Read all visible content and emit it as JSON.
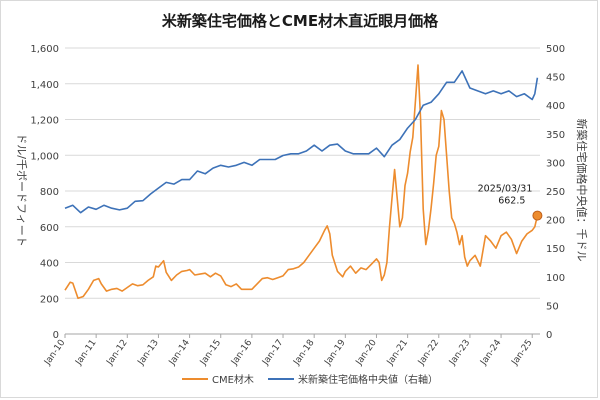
{
  "chart_data": {
    "type": "line",
    "title": "米新築住宅価格とCME材木直近眼月価格",
    "ylabel": "ドル/千ボードフィート",
    "y2label": "新築住宅価格中央値：千ドル",
    "ylim": [
      0,
      1600
    ],
    "y2lim": [
      0,
      500
    ],
    "yticks": [
      "0",
      "200",
      "400",
      "600",
      "800",
      "1,000",
      "1,200",
      "1,400",
      "1,600"
    ],
    "y2ticks": [
      "0",
      "50",
      "100",
      "150",
      "200",
      "250",
      "300",
      "350",
      "400",
      "450",
      "500"
    ],
    "xlim": [
      "2010-01",
      "2025-04"
    ],
    "xticks": [
      "Jan-10",
      "Jan-11",
      "Jan-12",
      "Jan-13",
      "Jan-14",
      "Jan-15",
      "Jan-16",
      "Jan-17",
      "Jan-18",
      "Jan-19",
      "Jan-20",
      "Jan-21",
      "Jan-22",
      "Jan-23",
      "Jan-24",
      "Jan-25"
    ],
    "grid": true,
    "legend_position": "bottom",
    "annotation": {
      "date": "2025/03/31",
      "value": "662.5"
    },
    "colors": {
      "lumber": "#ED8C2E",
      "price": "#3D72B8",
      "grid": "#d9d9d9",
      "axis": "#595959"
    },
    "series": [
      {
        "name": "CME材木",
        "axis": "left",
        "points": [
          [
            "2010-01",
            245
          ],
          [
            "2010-03",
            290
          ],
          [
            "2010-04",
            285
          ],
          [
            "2010-06",
            200
          ],
          [
            "2010-08",
            210
          ],
          [
            "2010-10",
            250
          ],
          [
            "2010-12",
            300
          ],
          [
            "2011-02",
            310
          ],
          [
            "2011-03",
            280
          ],
          [
            "2011-05",
            240
          ],
          [
            "2011-07",
            250
          ],
          [
            "2011-09",
            255
          ],
          [
            "2011-11",
            240
          ],
          [
            "2012-01",
            260
          ],
          [
            "2012-03",
            280
          ],
          [
            "2012-05",
            270
          ],
          [
            "2012-07",
            275
          ],
          [
            "2012-09",
            300
          ],
          [
            "2012-11",
            320
          ],
          [
            "2012-12",
            380
          ],
          [
            "2013-01",
            375
          ],
          [
            "2013-03",
            410
          ],
          [
            "2013-04",
            345
          ],
          [
            "2013-06",
            300
          ],
          [
            "2013-08",
            330
          ],
          [
            "2013-10",
            350
          ],
          [
            "2013-12",
            355
          ],
          [
            "2014-01",
            360
          ],
          [
            "2014-03",
            330
          ],
          [
            "2014-05",
            335
          ],
          [
            "2014-07",
            340
          ],
          [
            "2014-09",
            320
          ],
          [
            "2014-11",
            340
          ],
          [
            "2015-01",
            325
          ],
          [
            "2015-03",
            275
          ],
          [
            "2015-05",
            265
          ],
          [
            "2015-07",
            280
          ],
          [
            "2015-09",
            250
          ],
          [
            "2015-11",
            250
          ],
          [
            "2016-01",
            250
          ],
          [
            "2016-03",
            280
          ],
          [
            "2016-05",
            310
          ],
          [
            "2016-07",
            315
          ],
          [
            "2016-09",
            305
          ],
          [
            "2016-11",
            315
          ],
          [
            "2017-01",
            325
          ],
          [
            "2017-03",
            360
          ],
          [
            "2017-05",
            365
          ],
          [
            "2017-07",
            375
          ],
          [
            "2017-09",
            400
          ],
          [
            "2017-11",
            440
          ],
          [
            "2018-01",
            480
          ],
          [
            "2018-03",
            520
          ],
          [
            "2018-05",
            580
          ],
          [
            "2018-06",
            605
          ],
          [
            "2018-07",
            560
          ],
          [
            "2018-08",
            440
          ],
          [
            "2018-10",
            350
          ],
          [
            "2018-12",
            320
          ],
          [
            "2019-01",
            350
          ],
          [
            "2019-03",
            380
          ],
          [
            "2019-05",
            340
          ],
          [
            "2019-07",
            370
          ],
          [
            "2019-09",
            360
          ],
          [
            "2019-11",
            390
          ],
          [
            "2020-01",
            420
          ],
          [
            "2020-02",
            400
          ],
          [
            "2020-03",
            300
          ],
          [
            "2020-04",
            330
          ],
          [
            "2020-05",
            400
          ],
          [
            "2020-06",
            600
          ],
          [
            "2020-07",
            760
          ],
          [
            "2020-08",
            920
          ],
          [
            "2020-09",
            760
          ],
          [
            "2020-10",
            600
          ],
          [
            "2020-11",
            650
          ],
          [
            "2020-12",
            830
          ],
          [
            "2021-01",
            900
          ],
          [
            "2021-02",
            1020
          ],
          [
            "2021-03",
            1100
          ],
          [
            "2021-04",
            1300
          ],
          [
            "2021-05",
            1505
          ],
          [
            "2021-06",
            1200
          ],
          [
            "2021-07",
            700
          ],
          [
            "2021-08",
            500
          ],
          [
            "2021-09",
            580
          ],
          [
            "2021-10",
            700
          ],
          [
            "2021-11",
            840
          ],
          [
            "2021-12",
            1000
          ],
          [
            "2022-01",
            1050
          ],
          [
            "2022-02",
            1250
          ],
          [
            "2022-03",
            1200
          ],
          [
            "2022-04",
            1000
          ],
          [
            "2022-05",
            800
          ],
          [
            "2022-06",
            650
          ],
          [
            "2022-07",
            620
          ],
          [
            "2022-08",
            570
          ],
          [
            "2022-09",
            500
          ],
          [
            "2022-10",
            550
          ],
          [
            "2022-11",
            430
          ],
          [
            "2022-12",
            380
          ],
          [
            "2023-01",
            410
          ],
          [
            "2023-03",
            440
          ],
          [
            "2023-05",
            380
          ],
          [
            "2023-07",
            550
          ],
          [
            "2023-09",
            520
          ],
          [
            "2023-11",
            480
          ],
          [
            "2024-01",
            550
          ],
          [
            "2024-03",
            570
          ],
          [
            "2024-05",
            530
          ],
          [
            "2024-07",
            450
          ],
          [
            "2024-09",
            520
          ],
          [
            "2024-11",
            560
          ],
          [
            "2025-01",
            580
          ],
          [
            "2025-02",
            600
          ],
          [
            "2025-03",
            662.5
          ]
        ]
      },
      {
        "name": "米新築住宅価格中央値（右軸）",
        "axis": "right",
        "points": [
          [
            "2010-01",
            220
          ],
          [
            "2010-04",
            225
          ],
          [
            "2010-07",
            212
          ],
          [
            "2010-10",
            222
          ],
          [
            "2011-01",
            218
          ],
          [
            "2011-04",
            225
          ],
          [
            "2011-07",
            220
          ],
          [
            "2011-10",
            217
          ],
          [
            "2012-01",
            220
          ],
          [
            "2012-04",
            232
          ],
          [
            "2012-07",
            233
          ],
          [
            "2012-10",
            245
          ],
          [
            "2013-01",
            255
          ],
          [
            "2013-04",
            265
          ],
          [
            "2013-07",
            262
          ],
          [
            "2013-10",
            270
          ],
          [
            "2014-01",
            270
          ],
          [
            "2014-04",
            285
          ],
          [
            "2014-07",
            280
          ],
          [
            "2014-10",
            290
          ],
          [
            "2015-01",
            295
          ],
          [
            "2015-04",
            292
          ],
          [
            "2015-07",
            295
          ],
          [
            "2015-10",
            300
          ],
          [
            "2016-01",
            295
          ],
          [
            "2016-04",
            305
          ],
          [
            "2016-07",
            305
          ],
          [
            "2016-10",
            305
          ],
          [
            "2017-01",
            312
          ],
          [
            "2017-04",
            315
          ],
          [
            "2017-07",
            315
          ],
          [
            "2017-10",
            320
          ],
          [
            "2018-01",
            330
          ],
          [
            "2018-04",
            320
          ],
          [
            "2018-07",
            330
          ],
          [
            "2018-10",
            332
          ],
          [
            "2019-01",
            320
          ],
          [
            "2019-04",
            315
          ],
          [
            "2019-07",
            315
          ],
          [
            "2019-10",
            315
          ],
          [
            "2020-01",
            325
          ],
          [
            "2020-04",
            310
          ],
          [
            "2020-07",
            330
          ],
          [
            "2020-10",
            340
          ],
          [
            "2021-01",
            360
          ],
          [
            "2021-04",
            375
          ],
          [
            "2021-07",
            400
          ],
          [
            "2021-10",
            405
          ],
          [
            "2022-01",
            420
          ],
          [
            "2022-04",
            440
          ],
          [
            "2022-07",
            440
          ],
          [
            "2022-10",
            460
          ],
          [
            "2023-01",
            430
          ],
          [
            "2023-04",
            425
          ],
          [
            "2023-07",
            420
          ],
          [
            "2023-10",
            425
          ],
          [
            "2024-01",
            420
          ],
          [
            "2024-04",
            425
          ],
          [
            "2024-07",
            415
          ],
          [
            "2024-10",
            420
          ],
          [
            "2025-01",
            410
          ],
          [
            "2025-02",
            420
          ],
          [
            "2025-03",
            448
          ]
        ]
      }
    ]
  }
}
